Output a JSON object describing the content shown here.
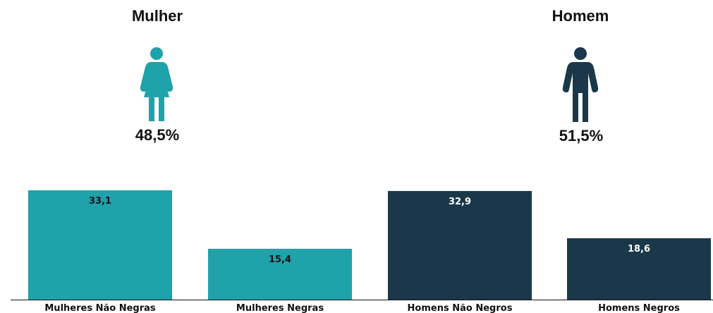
{
  "groups": [
    {
      "title": "Mulher",
      "percent": "48,5%",
      "icon": "woman-icon",
      "color": "#20a2ab"
    },
    {
      "title": "Homem",
      "percent": "51,5%",
      "icon": "man-icon",
      "color": "#1a3849"
    }
  ],
  "chart_data": {
    "type": "bar",
    "categories": [
      "Mulheres Não Negras",
      "Mulheres Negras",
      "Homens Não Negros",
      "Homens Negros"
    ],
    "values": [
      33.1,
      15.4,
      32.9,
      18.6
    ],
    "value_labels": [
      "33,1",
      "15,4",
      "32,9",
      "18,6"
    ],
    "colors": [
      "#20a2ab",
      "#20a2ab",
      "#1a3849",
      "#1a3849"
    ],
    "value_label_colors": [
      "#111111",
      "#111111",
      "#ffffff",
      "#ffffff"
    ],
    "ylim": [
      0,
      35
    ],
    "grid": false,
    "legend": "none"
  }
}
